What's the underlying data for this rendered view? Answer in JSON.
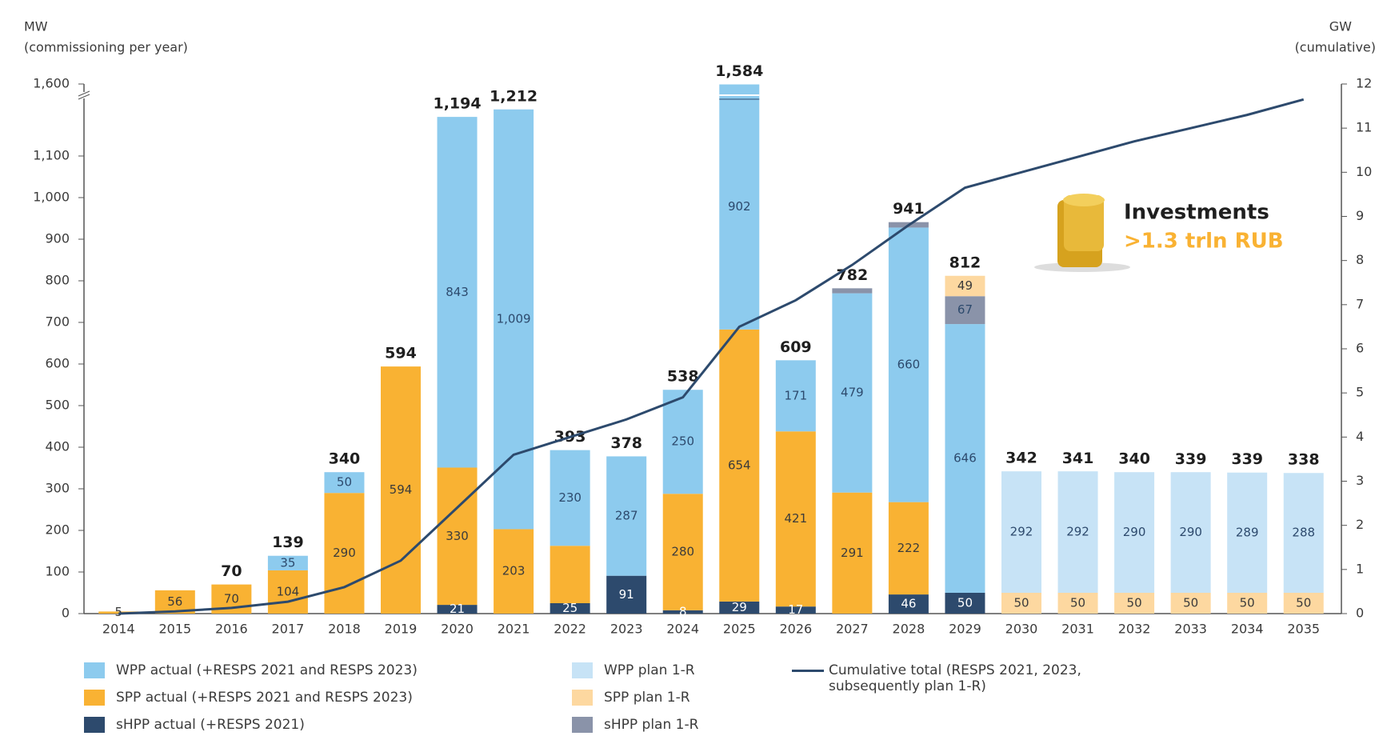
{
  "chart_data": {
    "type": "stacked-bar-line",
    "y_axis_title": "MW",
    "y_axis_subtitle": "(commissioning per year)",
    "y2_axis_title": "GW",
    "y2_axis_subtitle": "(cumulative)",
    "categories": [
      "2014",
      "2015",
      "2016",
      "2017",
      "2018",
      "2019",
      "2020",
      "2021",
      "2022",
      "2023",
      "2024",
      "2025",
      "2026",
      "2027",
      "2028",
      "2029",
      "2030",
      "2031",
      "2032",
      "2033",
      "2034",
      "2035"
    ],
    "ylim": [
      0,
      1600
    ],
    "y_break": 1250,
    "yticks": [
      0,
      100,
      200,
      300,
      400,
      500,
      600,
      700,
      800,
      900,
      {
        "value": 1000,
        "label": "1,000"
      },
      {
        "value": 1100,
        "label": "1,100"
      },
      {
        "value": 1600,
        "label": "1,600"
      }
    ],
    "y2lim": [
      0,
      12
    ],
    "y2ticks": [
      0,
      1,
      2,
      3,
      4,
      5,
      6,
      7,
      8,
      9,
      10,
      11,
      12
    ],
    "series": [
      {
        "name": "sHPP actual (+RESPS 2021)",
        "color": "#2d4a6d",
        "label_color": "#ffffff",
        "values": [
          null,
          null,
          null,
          null,
          null,
          null,
          21,
          null,
          25,
          91,
          8,
          29,
          17,
          null,
          46,
          50,
          null,
          null,
          null,
          null,
          null,
          null
        ]
      },
      {
        "name": "SPP actual (+RESPS 2021 and RESPS 2023)",
        "color": "#f9b233",
        "label_color": "#3b3b3b",
        "values": [
          5,
          56,
          70,
          104,
          290,
          594,
          330,
          203,
          138,
          null,
          280,
          654,
          421,
          291,
          222,
          null,
          null,
          null,
          null,
          null,
          null,
          null
        ],
        "value_labels": [
          "5",
          "56",
          "70",
          "104",
          "290",
          "594",
          "330",
          "203",
          null,
          null,
          "280",
          "654",
          "421",
          "291",
          "222",
          null,
          null,
          null,
          null,
          null,
          null,
          null
        ]
      },
      {
        "name": "WPP actual (+RESPS 2021 and RESPS 2023)",
        "color": "#8dcbee",
        "label_color": "#2d4a6d",
        "values": [
          null,
          null,
          null,
          35,
          50,
          null,
          843,
          1009,
          230,
          287,
          250,
          902,
          171,
          479,
          660,
          646,
          null,
          null,
          null,
          null,
          null,
          null
        ],
        "value_labels": [
          null,
          null,
          null,
          "35",
          "50",
          null,
          "843",
          "1,009",
          "230",
          "287",
          "250",
          "902",
          "171",
          "479",
          "660",
          "646",
          null,
          null,
          null,
          null,
          null,
          null
        ]
      },
      {
        "name": "sHPP plan 1-R",
        "color": "#8a93a9",
        "label_color": "#2d4a6d",
        "values": [
          null,
          null,
          null,
          null,
          null,
          null,
          null,
          null,
          null,
          null,
          null,
          null,
          null,
          12,
          13,
          67,
          null,
          null,
          null,
          null,
          null,
          null
        ],
        "value_labels": [
          null,
          null,
          null,
          null,
          null,
          null,
          null,
          null,
          null,
          null,
          null,
          null,
          null,
          null,
          null,
          "67",
          null,
          null,
          null,
          null,
          null,
          null
        ]
      },
      {
        "name": "SPP plan 1-R",
        "color": "#fdd8a0",
        "label_color": "#3b3b3b",
        "values": [
          null,
          null,
          null,
          null,
          null,
          null,
          null,
          null,
          null,
          null,
          null,
          null,
          null,
          null,
          null,
          49,
          50,
          50,
          50,
          50,
          50,
          50
        ]
      },
      {
        "name": "WPP plan 1-R",
        "color": "#c7e3f6",
        "label_color": "#2d4a6d",
        "values": [
          null,
          null,
          null,
          null,
          null,
          null,
          null,
          null,
          null,
          null,
          null,
          null,
          null,
          null,
          null,
          null,
          292,
          292,
          290,
          290,
          289,
          288
        ]
      },
      {
        "name": "Cumulative total (RESPS 2021, 2023, subsequently plan 1-R)",
        "type": "line",
        "axis": "y2",
        "color": "#2d4a6d",
        "values": [
          0.0,
          0.05,
          0.13,
          0.27,
          0.6,
          1.2,
          2.4,
          3.6,
          4.0,
          4.4,
          4.9,
          6.5,
          7.1,
          7.9,
          8.8,
          9.65,
          10.0,
          10.35,
          10.7,
          11.0,
          11.3,
          11.65
        ]
      }
    ],
    "totals": [
      null,
      null,
      70,
      139,
      340,
      594,
      1194,
      1212,
      393,
      378,
      538,
      1584,
      609,
      782,
      941,
      812,
      342,
      341,
      340,
      339,
      339,
      338
    ],
    "total_labels": [
      null,
      null,
      "70",
      "139",
      "340",
      "594",
      "1,194",
      "1,212",
      "393",
      "378",
      "538",
      "1,584",
      "609",
      "782",
      "941",
      "812",
      "342",
      "341",
      "340",
      "339",
      "339",
      "338"
    ],
    "annotation": {
      "title": "Investments",
      "text": ">1.3 trln RUB",
      "color": "#f9b233"
    }
  }
}
